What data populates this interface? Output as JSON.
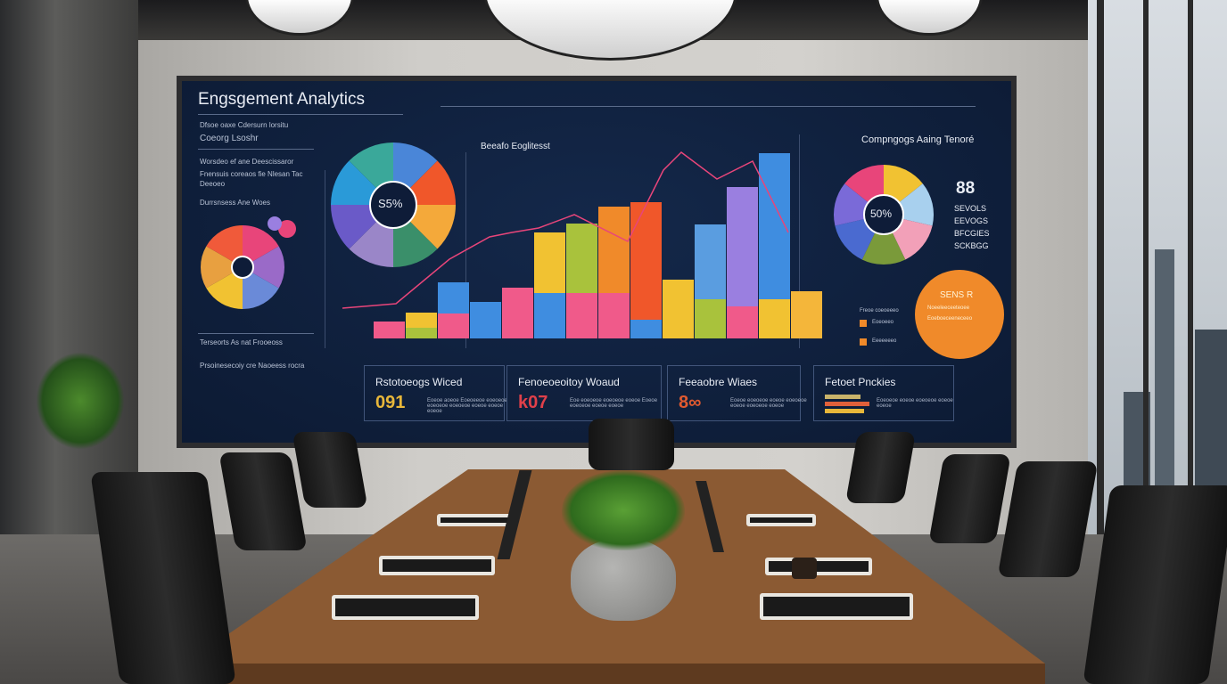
{
  "dashboard": {
    "title": "Engsgement Analytics",
    "left_panel": {
      "line1": "Dfsoe oaxe Cdersurn lorsitu",
      "line2": "Coeorg Lsoshr",
      "line3": "Worsdeo ef ane Deescissaror",
      "line4": "Fnensuis coreaos fie Nlesan Tac",
      "line5": "Deeoeo",
      "line6": "Durrsnsess Ane Woes",
      "line7": "Terseorts As nat Frooeoss",
      "line8": "Prsoinesecoiy cre Naoeess rocra"
    },
    "center_chart": {
      "title": "Beeafo Eoglitesst",
      "pie_label": "S5%",
      "colors": [
        "#f1c232",
        "#a9c23c",
        "#f08a2a",
        "#f0572a",
        "#5a9de0",
        "#9a7fe0",
        "#f05a8a",
        "#3f8de0",
        "#f4b63a"
      ]
    },
    "right_panel": {
      "title": "Compngogs Aaing Tenoré",
      "pie_label": "50%",
      "big_number": "88",
      "stats": [
        "SEVOLS",
        "EEVOGS",
        "BFCGIES",
        "SCKBGG"
      ],
      "circle_title": "SENS R",
      "circle_line1": "Noeeleeceeteoee",
      "circle_line2": "Eoeboeceeneceeo",
      "legend": [
        "Freoe coeoeeeo",
        "Eoeoeeo",
        "Eeeeeeeo"
      ]
    },
    "cards": [
      {
        "title": "Rstotoeogs Wiced",
        "value": "091",
        "value_color": "#e8b73a",
        "desc": "Eoeoe aoeoe Eoeoeeoe eoeoeoe eoeoeoe eoeoeoe eoeoe eoeoe eoeoe"
      },
      {
        "title": "Fenoeoeoitoy Woaud",
        "value": "k07",
        "value_color": "#e0404a",
        "desc": "Eoe eoeoeoe eoeoeoe eoeoe Eoeoe eoeoeoe eoeoe eoeoe"
      },
      {
        "title": "Feeaobre Wiaes",
        "value": "8∞",
        "value_color": "#e05a30",
        "desc": "Eoeoe eoeoeoe eoeoe eoeoeoe eoeoe eoeoeoe eoeoe"
      },
      {
        "title": "Fetoet Pnckies",
        "value": "",
        "value_color": "#e8b73a",
        "desc": "Eoeoeoe eoeoe eoeoeoe eoeoe eoeoe"
      }
    ]
  },
  "bars": [
    [
      [
        19,
        "#f05a8a"
      ]
    ],
    [
      [
        12,
        "#a9c23c"
      ],
      [
        17,
        "#f1c232"
      ]
    ],
    [
      [
        28,
        "#f05a8a"
      ],
      [
        35,
        "#3f8de0"
      ]
    ],
    [
      [
        41,
        "#3f8de0"
      ]
    ],
    [
      [
        57,
        "#f05a8a"
      ]
    ],
    [
      [
        51,
        "#3f8de0"
      ],
      [
        68,
        "#f1c232"
      ]
    ],
    [
      [
        51,
        "#f05a8a"
      ],
      [
        78,
        "#a9c23c"
      ]
    ],
    [
      [
        51,
        "#f05a8a"
      ],
      [
        97,
        "#f08a2a"
      ]
    ],
    [
      [
        21,
        "#3f8de0"
      ],
      [
        132,
        "#f0572a"
      ]
    ],
    [
      [
        66,
        "#f1c232"
      ]
    ],
    [
      [
        44,
        "#a9c23c"
      ],
      [
        84,
        "#5a9de0"
      ]
    ],
    [
      [
        36,
        "#f05a8a"
      ],
      [
        134,
        "#9a7fe0"
      ]
    ],
    [
      [
        44,
        "#f1c232"
      ],
      [
        164,
        "#3f8de0"
      ]
    ],
    [
      [
        53,
        "#f4b63a"
      ]
    ]
  ]
}
